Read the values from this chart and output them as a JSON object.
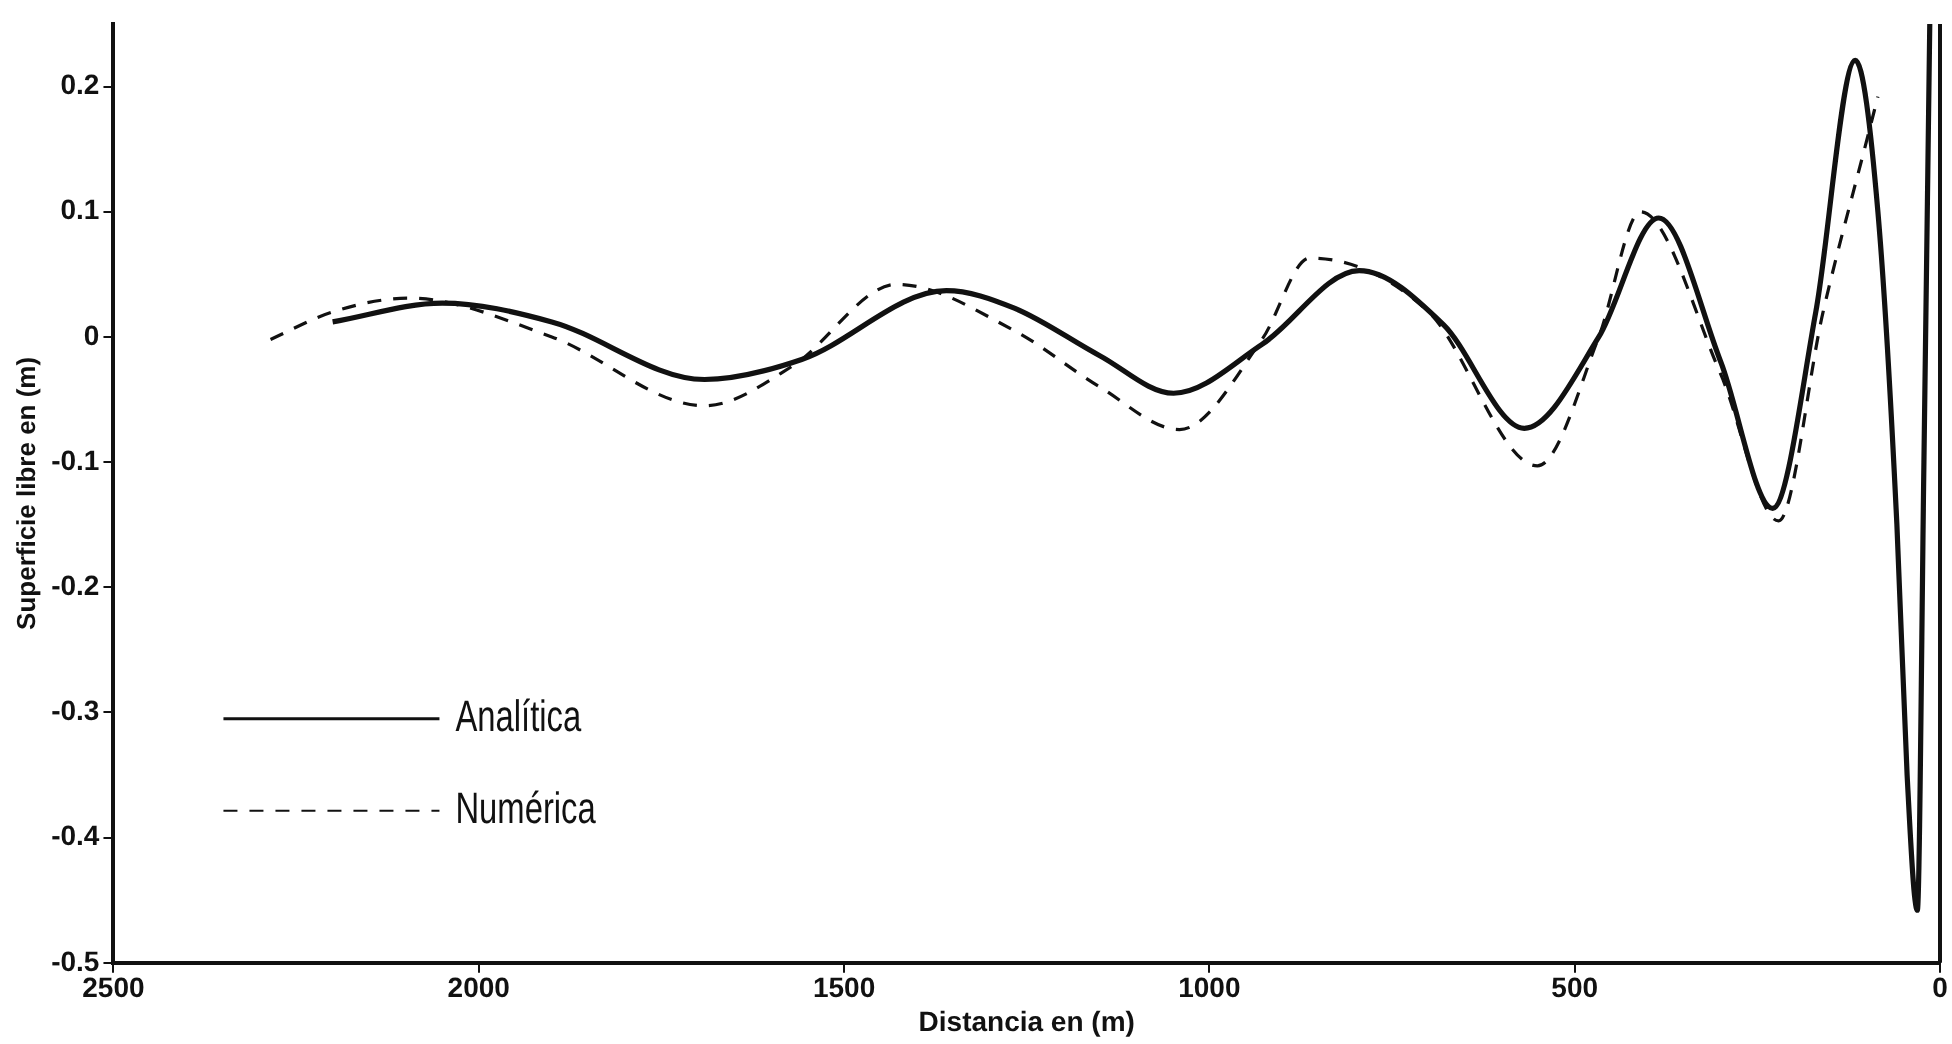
{
  "chart_data": {
    "type": "line",
    "xlabel": "Distancia en (m)",
    "ylabel": "Superficie libre en (m)",
    "xlim": [
      2500,
      0
    ],
    "xticks": [
      2500,
      2000,
      1500,
      1000,
      500,
      0
    ],
    "ylim": [
      -0.5,
      0.25
    ],
    "yticks": [
      -0.5,
      -0.4,
      -0.3,
      -0.2,
      -0.1,
      0,
      0.1,
      0.2
    ],
    "grid": false,
    "legend": "bottom left",
    "marker": "none",
    "series": [
      {
        "name": "Analítica",
        "color": "#111111",
        "line_style": "solid",
        "x": [
          2200,
          2050,
          1900,
          1691,
          1558,
          1360,
          1267,
          1150,
          1049,
          928,
          795,
          680,
          569,
          467,
          385,
          300,
          229,
          170,
          116,
          85,
          59,
          45,
          31,
          22,
          14
        ],
        "values": [
          0.012,
          0.027,
          0.012,
          -0.034,
          -0.018,
          0.037,
          0.023,
          -0.015,
          -0.045,
          -0.006,
          0.053,
          0.01,
          -0.073,
          0.0,
          0.095,
          -0.02,
          -0.137,
          0.02,
          0.221,
          0.1,
          -0.15,
          -0.35,
          -0.458,
          -0.1,
          0.25
        ]
      },
      {
        "name": "Numérica",
        "color": "#111111",
        "line_style": "dashed",
        "x": [
          2285,
          2200,
          2096,
          1900,
          1691,
          1570,
          1428,
          1267,
          1150,
          1041,
          928,
          863,
          700,
          551,
          467,
          410,
          300,
          221,
          160,
          99,
          85
        ],
        "values": [
          -0.002,
          0.02,
          0.031,
          0.0,
          -0.055,
          -0.023,
          0.042,
          0.005,
          -0.04,
          -0.074,
          -0.002,
          0.063,
          0.02,
          -0.103,
          0.0,
          0.1,
          -0.03,
          -0.147,
          0.02,
          0.16,
          0.192
        ]
      }
    ]
  }
}
